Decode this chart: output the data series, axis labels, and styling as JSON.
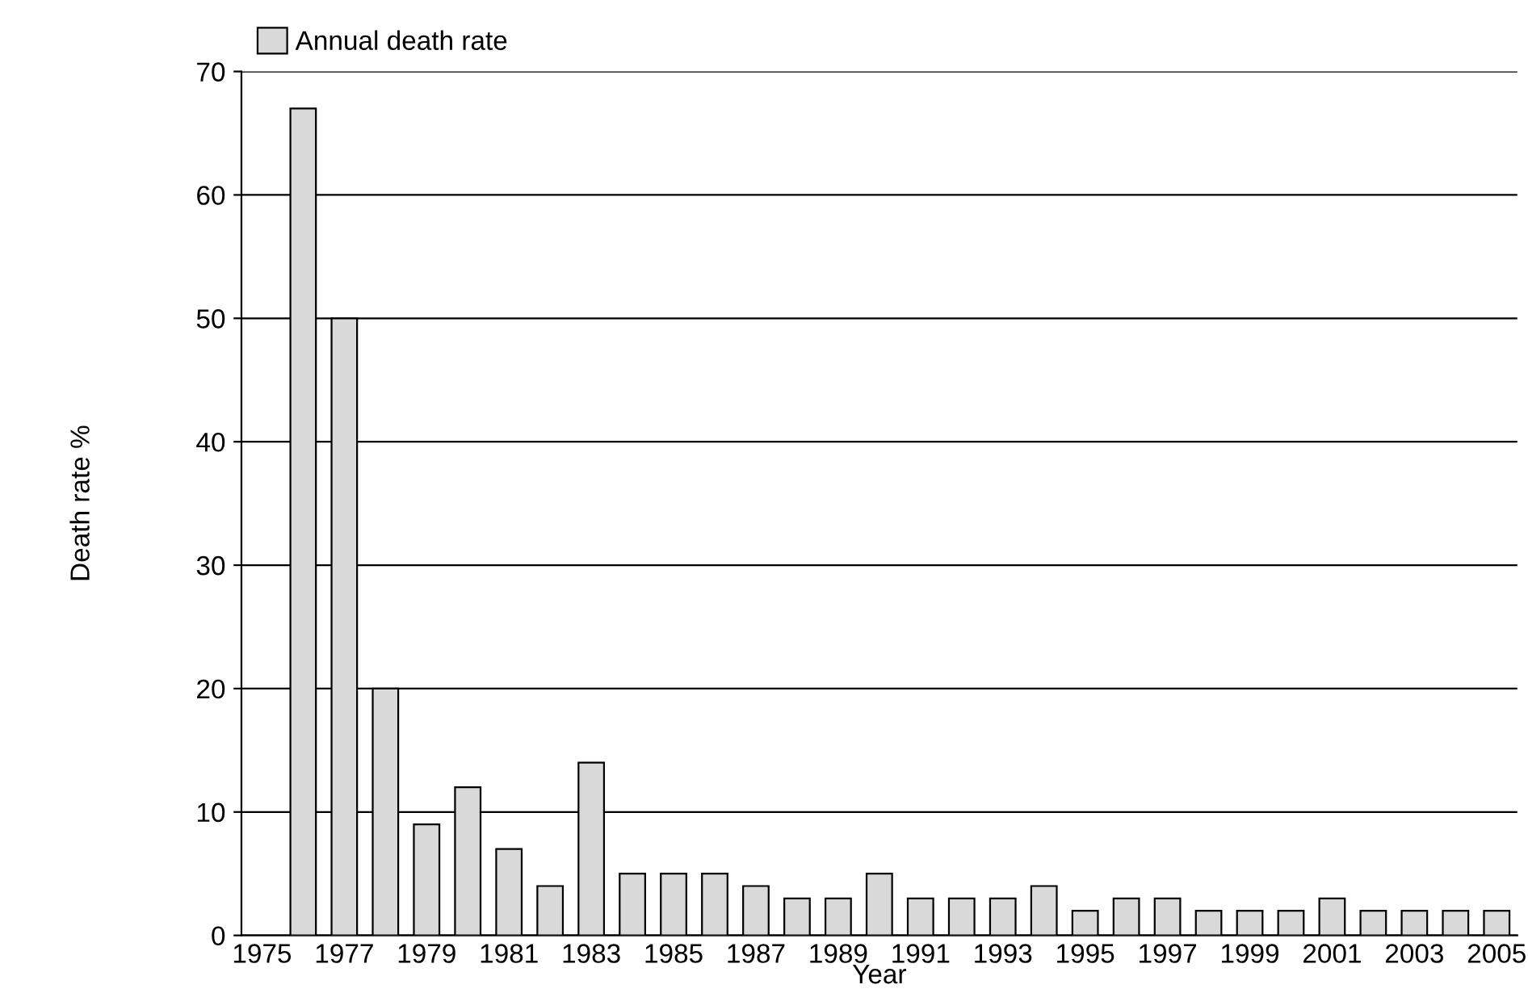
{
  "chart_data": {
    "type": "bar",
    "xlabel": "Year",
    "ylabel": "Death rate %",
    "categories": [
      "1975",
      null,
      "1977",
      null,
      "1979",
      null,
      "1981",
      null,
      "1983",
      null,
      "1985",
      null,
      "1987",
      null,
      "1989",
      null,
      "1991",
      null,
      "1993",
      null,
      "1995",
      null,
      "1997",
      null,
      "1999",
      null,
      "2001",
      null,
      "2003",
      null,
      "2005"
    ],
    "series": [
      {
        "name": "Annual death rate",
        "color": "#d9d9d9",
        "values": [
          null,
          67,
          50,
          20,
          9,
          12,
          7,
          4,
          14,
          5,
          5,
          5,
          4,
          3,
          3,
          5,
          3,
          3,
          3,
          4,
          2,
          3,
          3,
          2,
          2,
          2,
          3,
          2,
          2,
          2,
          2
        ]
      }
    ],
    "ylim": [
      0,
      70
    ],
    "yticks": [
      0,
      10,
      20,
      30,
      40,
      50,
      60,
      70
    ],
    "grid": "y",
    "legend": "top left"
  }
}
